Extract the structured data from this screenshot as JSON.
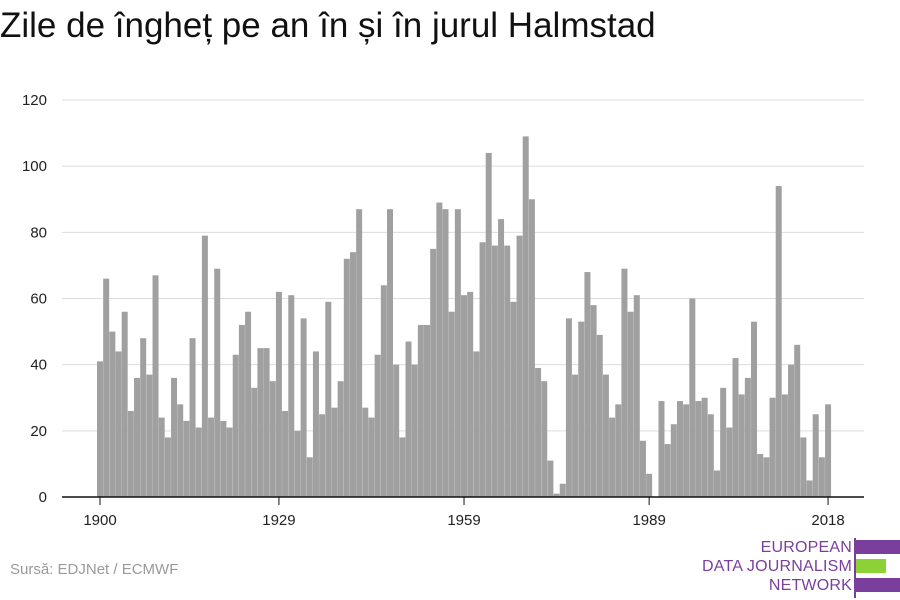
{
  "title": "Zile de îngheț pe an în și în jurul Halmstad",
  "source": "Sursă: EDJNet / ECMWF",
  "logo": {
    "lines": [
      "EUROPEAN",
      "DATA JOURNALISM",
      "NETWORK"
    ],
    "colors": {
      "purple": "#7a3f9d",
      "green": "#8cd136"
    }
  },
  "chart_data": {
    "type": "bar",
    "title": "Zile de îngheț pe an în și în jurul Halmstad",
    "xlabel": "",
    "ylabel": "",
    "x_ticks": [
      "1900",
      "1929",
      "1959",
      "1989",
      "2018"
    ],
    "y_ticks": [
      "0",
      "20",
      "40",
      "60",
      "80",
      "100",
      "120"
    ],
    "ylim": [
      0,
      120
    ],
    "grid": true,
    "bar_color": "#a0a0a0",
    "categories": [
      1900,
      1901,
      1902,
      1903,
      1904,
      1905,
      1906,
      1907,
      1908,
      1909,
      1910,
      1911,
      1912,
      1913,
      1914,
      1915,
      1916,
      1917,
      1918,
      1919,
      1920,
      1921,
      1922,
      1923,
      1924,
      1925,
      1926,
      1927,
      1928,
      1929,
      1930,
      1931,
      1932,
      1933,
      1934,
      1935,
      1936,
      1937,
      1938,
      1939,
      1940,
      1941,
      1942,
      1943,
      1944,
      1945,
      1946,
      1947,
      1948,
      1949,
      1950,
      1951,
      1952,
      1953,
      1954,
      1955,
      1956,
      1957,
      1958,
      1959,
      1960,
      1961,
      1962,
      1963,
      1964,
      1965,
      1966,
      1967,
      1968,
      1969,
      1970,
      1971,
      1972,
      1973,
      1974,
      1975,
      1976,
      1977,
      1978,
      1979,
      1980,
      1981,
      1982,
      1983,
      1984,
      1985,
      1986,
      1987,
      1988,
      1989,
      1990,
      1991,
      1992,
      1993,
      1994,
      1995,
      1996,
      1997,
      1998,
      1999,
      2000,
      2001,
      2002,
      2003,
      2004,
      2005,
      2006,
      2007,
      2008,
      2009,
      2010,
      2011,
      2012,
      2013,
      2014,
      2015,
      2016,
      2017,
      2018
    ],
    "values": [
      41,
      66,
      50,
      44,
      56,
      26,
      36,
      48,
      37,
      67,
      24,
      18,
      36,
      28,
      23,
      48,
      21,
      79,
      24,
      69,
      23,
      21,
      43,
      52,
      56,
      33,
      45,
      45,
      35,
      62,
      26,
      61,
      20,
      54,
      12,
      44,
      25,
      59,
      27,
      35,
      72,
      74,
      87,
      27,
      24,
      43,
      64,
      87,
      40,
      18,
      47,
      40,
      52,
      52,
      75,
      89,
      87,
      56,
      87,
      61,
      62,
      44,
      77,
      104,
      76,
      84,
      76,
      59,
      79,
      109,
      90,
      39,
      35,
      11,
      1,
      4,
      54,
      37,
      53,
      68,
      58,
      49,
      37,
      24,
      28,
      69,
      56,
      61,
      17,
      7,
      0,
      29,
      16,
      22,
      29,
      28,
      60,
      29,
      30,
      25,
      8,
      33,
      21,
      42,
      31,
      36,
      53,
      13,
      12,
      30,
      94,
      31,
      40,
      46,
      18,
      5,
      25,
      12,
      28
    ]
  }
}
